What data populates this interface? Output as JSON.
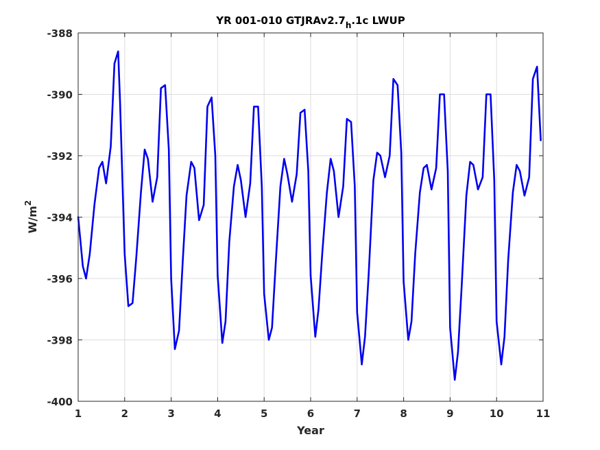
{
  "chart_data": {
    "type": "line",
    "title": {
      "main": "YR 001-010 GTJRAv2.7",
      "subscript": "h",
      "suffix": ".1c LWUP"
    },
    "xlabel": "Year",
    "ylabel": {
      "base": "W/m",
      "superscript": "2"
    },
    "xlim": [
      1,
      11
    ],
    "ylim": [
      -400,
      -388
    ],
    "xticks": [
      "1",
      "2",
      "3",
      "4",
      "5",
      "6",
      "7",
      "8",
      "9",
      "10",
      "11"
    ],
    "yticks": [
      "-388",
      "-390",
      "-392",
      "-394",
      "-396",
      "-398",
      "-400"
    ],
    "grid": true,
    "legend": "none",
    "colors": {
      "line": "#0000ee",
      "axis": "#262626",
      "grid": "#dcdcdc"
    },
    "series": [
      {
        "x": [
          1.0,
          1.1,
          1.17,
          1.25,
          1.35,
          1.45,
          1.52,
          1.6,
          1.7,
          1.78,
          1.86,
          1.9,
          2.0,
          2.08,
          2.17,
          2.25,
          2.35,
          2.43,
          2.5,
          2.6,
          2.7,
          2.78,
          2.87,
          2.95,
          3.0,
          3.08,
          3.17,
          3.25,
          3.33,
          3.43,
          3.5,
          3.6,
          3.7,
          3.78,
          3.87,
          3.95,
          4.0,
          4.1,
          4.17,
          4.25,
          4.35,
          4.43,
          4.5,
          4.6,
          4.7,
          4.78,
          4.87,
          4.95,
          5.0,
          5.1,
          5.17,
          5.25,
          5.35,
          5.43,
          5.5,
          5.6,
          5.7,
          5.78,
          5.87,
          5.95,
          6.0,
          6.1,
          6.17,
          6.25,
          6.35,
          6.43,
          6.5,
          6.6,
          6.7,
          6.78,
          6.87,
          6.95,
          7.0,
          7.1,
          7.17,
          7.25,
          7.35,
          7.43,
          7.5,
          7.6,
          7.7,
          7.78,
          7.87,
          7.95,
          8.0,
          8.1,
          8.17,
          8.25,
          8.35,
          8.43,
          8.5,
          8.6,
          8.7,
          8.78,
          8.87,
          8.95,
          9.0,
          9.1,
          9.17,
          9.25,
          9.35,
          9.43,
          9.5,
          9.6,
          9.7,
          9.78,
          9.87,
          9.95,
          10.0,
          10.1,
          10.17,
          10.25,
          10.35,
          10.43,
          10.5,
          10.6,
          10.7,
          10.78,
          10.87,
          10.95
        ],
        "y": [
          -394.0,
          -395.6,
          -396.0,
          -395.2,
          -393.6,
          -392.4,
          -392.2,
          -392.9,
          -391.7,
          -389.0,
          -388.6,
          -390.2,
          -395.2,
          -396.9,
          -396.8,
          -395.3,
          -393.2,
          -391.8,
          -392.1,
          -393.5,
          -392.7,
          -389.8,
          -389.7,
          -391.8,
          -396.0,
          -398.3,
          -397.7,
          -395.4,
          -393.3,
          -392.2,
          -392.4,
          -394.1,
          -393.6,
          -390.4,
          -390.1,
          -392.0,
          -395.9,
          -398.1,
          -397.4,
          -394.8,
          -393.0,
          -392.3,
          -392.8,
          -394.0,
          -392.9,
          -390.4,
          -390.4,
          -393.0,
          -396.5,
          -398.0,
          -397.6,
          -395.5,
          -393.0,
          -392.1,
          -392.6,
          -393.5,
          -392.6,
          -390.6,
          -390.5,
          -392.5,
          -395.9,
          -397.9,
          -397.0,
          -395.2,
          -393.2,
          -392.1,
          -392.5,
          -394.0,
          -393.0,
          -390.8,
          -390.9,
          -393.0,
          -397.1,
          -398.8,
          -397.9,
          -395.8,
          -392.8,
          -391.9,
          -392.0,
          -392.7,
          -392.0,
          -389.5,
          -389.7,
          -391.9,
          -396.1,
          -398.0,
          -397.4,
          -395.2,
          -393.2,
          -392.4,
          -392.3,
          -393.1,
          -392.4,
          -390.0,
          -390.0,
          -392.5,
          -397.6,
          -399.3,
          -398.4,
          -396.2,
          -393.3,
          -392.2,
          -392.3,
          -393.1,
          -392.7,
          -390.0,
          -390.0,
          -392.8,
          -397.4,
          -398.8,
          -397.9,
          -395.4,
          -393.2,
          -392.3,
          -392.5,
          -393.3,
          -392.7,
          -389.5,
          -389.1,
          -391.5
        ]
      }
    ]
  }
}
